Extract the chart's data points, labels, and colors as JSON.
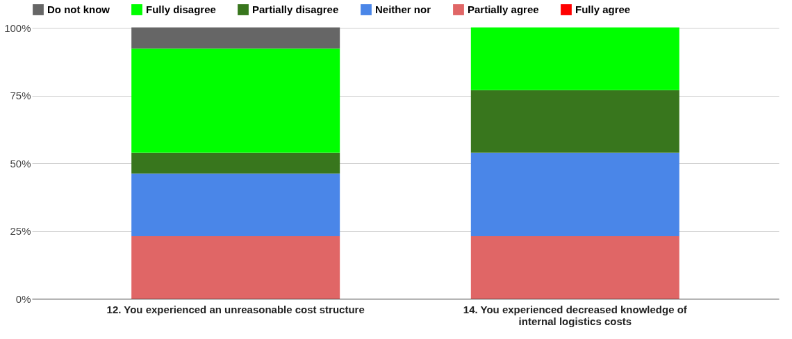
{
  "chart_data": {
    "type": "bar",
    "stacked": true,
    "categories": [
      "12. You experienced an unreasonable cost structure",
      "14. You experienced decreased knowledge of internal logistics costs"
    ],
    "series": [
      {
        "name": "Fully agree",
        "color": "#ff0000",
        "values": [
          0,
          0
        ]
      },
      {
        "name": "Partially agree",
        "color": "#e06666",
        "values": [
          23.1,
          23.1
        ]
      },
      {
        "name": "Neither nor",
        "color": "#4a86e8",
        "values": [
          23.1,
          30.8
        ]
      },
      {
        "name": "Partially disagree",
        "color": "#38761d",
        "values": [
          7.7,
          23.1
        ]
      },
      {
        "name": "Fully disagree",
        "color": "#00ff00",
        "values": [
          38.5,
          23.1
        ]
      },
      {
        "name": "Do not know",
        "color": "#666666",
        "values": [
          7.7,
          0
        ]
      }
    ],
    "ylim": [
      0,
      100
    ],
    "yticks": [
      {
        "value": 0,
        "label": "0%"
      },
      {
        "value": 25,
        "label": "25%"
      },
      {
        "value": 50,
        "label": "50%"
      },
      {
        "value": 75,
        "label": "75%"
      },
      {
        "value": 100,
        "label": "100%"
      }
    ],
    "grid": "y",
    "legend": "top"
  }
}
